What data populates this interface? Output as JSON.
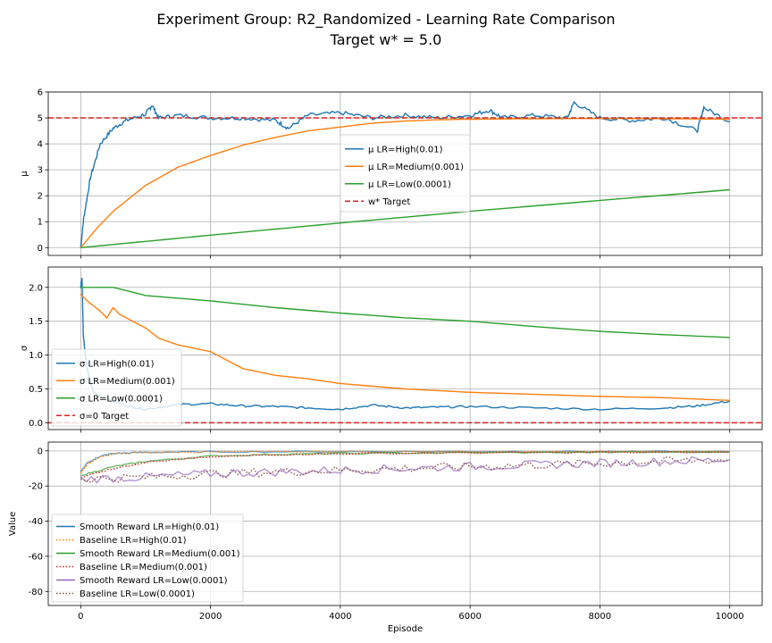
{
  "chart_data": {
    "title": "Experiment Group: R2_Randomized - Learning Rate Comparison",
    "subtitle": "Target w* = 5.0",
    "colors": {
      "high": "#1f77b4",
      "medium": "#ff7f0e",
      "low": "#2ca02c",
      "target": "#d62728",
      "brown": "#8c564b",
      "purple": "#9467bd"
    },
    "xlabel": "Episode",
    "xlim": [
      -500,
      10500
    ],
    "xticks": [
      0,
      2000,
      4000,
      6000,
      8000,
      10000
    ],
    "grid": true,
    "panels": [
      {
        "type": "line",
        "ylabel": "μ",
        "ylim": [
          -0.3,
          6.0
        ],
        "yticks": [
          0,
          1,
          2,
          3,
          4,
          5,
          6
        ],
        "legend_position": "center",
        "series": [
          {
            "name": "μ LR=High(0.01)",
            "color": "#1f77b4",
            "style": "solid",
            "x": [
              0,
              50,
              150,
              300,
              500,
              700,
              1000,
              1100,
              1200,
              1500,
              2000,
              2500,
              3000,
              3200,
              3500,
              4000,
              4500,
              5000,
              5500,
              6000,
              6300,
              6500,
              7000,
              7500,
              7600,
              8000,
              8500,
              9000,
              9500,
              9600,
              10000
            ],
            "y": [
              0,
              1.2,
              2.7,
              4.0,
              4.6,
              4.9,
              5.15,
              5.5,
              5.0,
              5.1,
              5.0,
              5.0,
              4.9,
              4.6,
              5.1,
              5.2,
              5.0,
              5.1,
              5.0,
              5.1,
              5.3,
              5.0,
              5.1,
              5.0,
              5.6,
              5.0,
              4.9,
              5.0,
              4.5,
              5.4,
              4.85
            ]
          },
          {
            "name": "μ LR=Medium(0.001)",
            "color": "#ff7f0e",
            "style": "solid",
            "x": [
              0,
              250,
              500,
              1000,
              1500,
              2000,
              2500,
              3000,
              3500,
              4000,
              4500,
              5000,
              5500,
              6000,
              7000,
              8000,
              9000,
              10000
            ],
            "y": [
              0,
              0.75,
              1.4,
              2.4,
              3.1,
              3.55,
              3.95,
              4.25,
              4.5,
              4.65,
              4.8,
              4.88,
              4.93,
              4.95,
              4.97,
              4.98,
              4.97,
              4.95
            ]
          },
          {
            "name": "μ LR=Low(0.0001)",
            "color": "#2ca02c",
            "style": "solid",
            "x": [
              0,
              2000,
              4000,
              6000,
              8000,
              10000
            ],
            "y": [
              0,
              0.48,
              0.95,
              1.4,
              1.82,
              2.23
            ]
          },
          {
            "name": "w* Target",
            "color": "#d62728",
            "style": "dashed",
            "x": [
              -500,
              10500
            ],
            "y": [
              5,
              5
            ]
          }
        ]
      },
      {
        "type": "line",
        "ylabel": "σ",
        "ylim": [
          -0.1,
          2.3
        ],
        "yticks": [
          0.0,
          0.5,
          1.0,
          1.5,
          2.0
        ],
        "legend_position": "lower left",
        "series": [
          {
            "name": "σ LR=High(0.01)",
            "color": "#1f77b4",
            "style": "solid",
            "x": [
              0,
              20,
              40,
              60,
              100,
              150,
              200,
              400,
              700,
              1000,
              1500,
              2000,
              2500,
              3000,
              3500,
              4000,
              4500,
              5000,
              5500,
              6000,
              7000,
              8000,
              9000,
              9500,
              10000
            ],
            "y": [
              2.0,
              2.15,
              1.3,
              1.1,
              0.8,
              0.6,
              0.45,
              0.35,
              0.25,
              0.2,
              0.27,
              0.28,
              0.25,
              0.24,
              0.22,
              0.2,
              0.26,
              0.22,
              0.23,
              0.24,
              0.22,
              0.2,
              0.22,
              0.25,
              0.32
            ]
          },
          {
            "name": "σ LR=Medium(0.001)",
            "color": "#ff7f0e",
            "style": "solid",
            "x": [
              0,
              100,
              300,
              400,
              500,
              600,
              800,
              1000,
              1200,
              1500,
              2000,
              2200,
              2500,
              3000,
              3500,
              4000,
              5000,
              6000,
              7000,
              8000,
              9000,
              10000
            ],
            "y": [
              1.9,
              1.8,
              1.65,
              1.55,
              1.7,
              1.6,
              1.5,
              1.4,
              1.25,
              1.15,
              1.05,
              0.95,
              0.8,
              0.7,
              0.65,
              0.58,
              0.5,
              0.45,
              0.42,
              0.39,
              0.37,
              0.33
            ]
          },
          {
            "name": "σ LR=Low(0.0001)",
            "color": "#2ca02c",
            "style": "solid",
            "x": [
              0,
              500,
              1000,
              2000,
              3000,
              4000,
              5000,
              6000,
              7000,
              8000,
              9000,
              10000
            ],
            "y": [
              2.0,
              2.0,
              1.88,
              1.8,
              1.7,
              1.62,
              1.55,
              1.5,
              1.42,
              1.35,
              1.3,
              1.26
            ]
          },
          {
            "name": "σ=0 Target",
            "color": "#d62728",
            "style": "dashed",
            "x": [
              -500,
              10500
            ],
            "y": [
              0,
              0
            ]
          }
        ]
      },
      {
        "type": "line",
        "ylabel": "Value",
        "ylim": [
          -88,
          5
        ],
        "yticks": [
          0,
          -20,
          -40,
          -60,
          -80
        ],
        "legend_position": "lower left",
        "series": [
          {
            "name": "Smooth Reward LR=High(0.01)",
            "color": "#1f77b4",
            "style": "solid",
            "x": [
              0,
              100,
              300,
              500,
              1000,
              2000,
              4000,
              6000,
              8000,
              10000
            ],
            "y": [
              -12,
              -7,
              -3,
              -1.5,
              -0.8,
              -0.5,
              -0.4,
              -0.4,
              -0.4,
              -0.5
            ]
          },
          {
            "name": "Baseline LR=High(0.01)",
            "color": "#ff7f0e",
            "style": "dotted",
            "x": [
              0,
              100,
              300,
              500,
              1000,
              2000,
              4000,
              6000,
              8000,
              10000
            ],
            "y": [
              -13,
              -7.5,
              -3.5,
              -1.8,
              -0.9,
              -0.6,
              -0.4,
              -0.4,
              -0.4,
              -0.5
            ]
          },
          {
            "name": "Smooth Reward LR=Medium(0.001)",
            "color": "#2ca02c",
            "style": "solid",
            "x": [
              0,
              500,
              1000,
              2000,
              3000,
              4000,
              6000,
              8000,
              10000
            ],
            "y": [
              -14,
              -9,
              -6,
              -3,
              -2,
              -1.5,
              -1.0,
              -0.8,
              -0.7
            ]
          },
          {
            "name": "Baseline LR=Medium(0.001)",
            "color": "#d62728",
            "style": "dotted",
            "x": [
              0,
              500,
              1000,
              2000,
              3000,
              4000,
              6000,
              8000,
              10000
            ],
            "y": [
              -15,
              -10,
              -6.5,
              -3.5,
              -2.2,
              -1.6,
              -1.1,
              -0.9,
              -0.8
            ]
          },
          {
            "name": "Smooth Reward LR=Low(0.0001)",
            "color": "#9467bd",
            "style": "solid",
            "x": [
              0,
              1000,
              2000,
              3000,
              4000,
              5000,
              6000,
              7000,
              8000,
              9000,
              10000
            ],
            "y": [
              -16,
              -15,
              -13,
              -12,
              -11,
              -10,
              -9,
              -8,
              -7,
              -6,
              -5
            ]
          },
          {
            "name": "Baseline LR=Low(0.0001)",
            "color": "#8c564b",
            "style": "dotted",
            "x": [
              0,
              1000,
              2000,
              3000,
              4000,
              5000,
              6000,
              7000,
              8000,
              9000,
              10000
            ],
            "y": [
              -16,
              -15,
              -13,
              -12,
              -11,
              -10,
              -9,
              -8,
              -7,
              -6,
              -5
            ]
          }
        ]
      }
    ]
  }
}
